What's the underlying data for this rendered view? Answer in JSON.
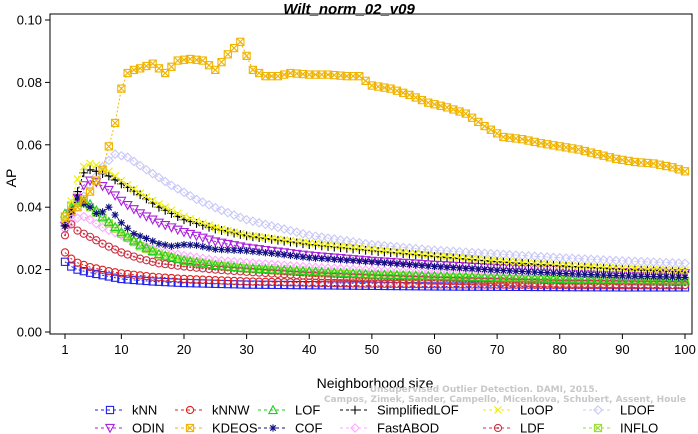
{
  "chart_data": {
    "type": "line",
    "title": "Wilt_norm_02_v09",
    "xlabel": "Neighborhood size",
    "ylabel": "AP",
    "xlim": [
      1,
      100
    ],
    "ylim": [
      0,
      0.1
    ],
    "x_ticks": [
      1,
      10,
      20,
      30,
      40,
      50,
      60,
      70,
      80,
      90,
      100
    ],
    "y_ticks": [
      0.0,
      0.02,
      0.04,
      0.06,
      0.08,
      0.1
    ],
    "y_tick_labels": [
      "0.00",
      "0.02",
      "0.04",
      "0.06",
      "0.08",
      "0.10"
    ],
    "grid": false,
    "legend_position": "bottom",
    "watermark": [
      "Unsupervised Outlier Detection. DAMI, 2015.",
      "Campos, Zimek, Sander, Campello, Micenkova, Schubert, Assent, Houle"
    ],
    "series": [
      {
        "name": "kNN",
        "color": "#2222ee",
        "marker": "square",
        "points": [
          [
            1,
            0.0225
          ],
          [
            2,
            0.021
          ],
          [
            3,
            0.02
          ],
          [
            5,
            0.019
          ],
          [
            8,
            0.0178
          ],
          [
            10,
            0.017
          ],
          [
            15,
            0.0162
          ],
          [
            20,
            0.0157
          ],
          [
            30,
            0.0152
          ],
          [
            40,
            0.015
          ],
          [
            50,
            0.0148
          ],
          [
            60,
            0.0146
          ],
          [
            70,
            0.0145
          ],
          [
            80,
            0.0144
          ],
          [
            90,
            0.0143
          ],
          [
            100,
            0.0143
          ]
        ]
      },
      {
        "name": "kNNW",
        "color": "#dd2222",
        "marker": "circle",
        "points": [
          [
            1,
            0.0255
          ],
          [
            2,
            0.0235
          ],
          [
            3,
            0.0222
          ],
          [
            5,
            0.0208
          ],
          [
            8,
            0.0195
          ],
          [
            10,
            0.0188
          ],
          [
            15,
            0.0177
          ],
          [
            20,
            0.017
          ],
          [
            30,
            0.0162
          ],
          [
            40,
            0.0158
          ],
          [
            50,
            0.0155
          ],
          [
            60,
            0.0153
          ],
          [
            70,
            0.0152
          ],
          [
            80,
            0.0151
          ],
          [
            90,
            0.015
          ],
          [
            100,
            0.015
          ]
        ]
      },
      {
        "name": "LOF",
        "color": "#22cc22",
        "marker": "triangle-up",
        "points": [
          [
            1,
            0.038
          ],
          [
            2,
            0.04
          ],
          [
            3,
            0.0415
          ],
          [
            4,
            0.042
          ],
          [
            5,
            0.041
          ],
          [
            7,
            0.037
          ],
          [
            10,
            0.032
          ],
          [
            13,
            0.028
          ],
          [
            16,
            0.025
          ],
          [
            20,
            0.023
          ],
          [
            25,
            0.0215
          ],
          [
            30,
            0.0205
          ],
          [
            40,
            0.0195
          ],
          [
            50,
            0.0185
          ],
          [
            60,
            0.018
          ],
          [
            70,
            0.0175
          ],
          [
            80,
            0.017
          ],
          [
            90,
            0.0168
          ],
          [
            100,
            0.0165
          ]
        ]
      },
      {
        "name": "SimplifiedLOF",
        "color": "#000000",
        "marker": "plus",
        "points": [
          [
            1,
            0.034
          ],
          [
            2,
            0.038
          ],
          [
            3,
            0.045
          ],
          [
            4,
            0.051
          ],
          [
            5,
            0.052
          ],
          [
            6,
            0.0515
          ],
          [
            8,
            0.05
          ],
          [
            10,
            0.0475
          ],
          [
            13,
            0.044
          ],
          [
            16,
            0.04
          ],
          [
            20,
            0.036
          ],
          [
            25,
            0.033
          ],
          [
            30,
            0.0308
          ],
          [
            40,
            0.028
          ],
          [
            50,
            0.026
          ],
          [
            60,
            0.0242
          ],
          [
            70,
            0.0225
          ],
          [
            80,
            0.0212
          ],
          [
            90,
            0.02
          ],
          [
            100,
            0.0192
          ]
        ]
      },
      {
        "name": "LoOP",
        "color": "#eeee00",
        "marker": "x",
        "points": [
          [
            1,
            0.036
          ],
          [
            2,
            0.042
          ],
          [
            3,
            0.049
          ],
          [
            4,
            0.053
          ],
          [
            5,
            0.054
          ],
          [
            6,
            0.0535
          ],
          [
            8,
            0.0515
          ],
          [
            10,
            0.0485
          ],
          [
            13,
            0.0445
          ],
          [
            16,
            0.041
          ],
          [
            20,
            0.037
          ],
          [
            25,
            0.0335
          ],
          [
            30,
            0.031
          ],
          [
            40,
            0.0285
          ],
          [
            50,
            0.0265
          ],
          [
            60,
            0.0245
          ],
          [
            70,
            0.0228
          ],
          [
            80,
            0.0215
          ],
          [
            90,
            0.0205
          ],
          [
            100,
            0.0198
          ]
        ]
      },
      {
        "name": "LDOF",
        "color": "#c8c8f8",
        "marker": "diamond",
        "points": [
          [
            1,
            0.035
          ],
          [
            3,
            0.04
          ],
          [
            5,
            0.047
          ],
          [
            7,
            0.053
          ],
          [
            9,
            0.057
          ],
          [
            11,
            0.056
          ],
          [
            14,
            0.052
          ],
          [
            18,
            0.047
          ],
          [
            22,
            0.0425
          ],
          [
            26,
            0.039
          ],
          [
            30,
            0.036
          ],
          [
            40,
            0.031
          ],
          [
            50,
            0.028
          ],
          [
            60,
            0.0262
          ],
          [
            70,
            0.025
          ],
          [
            80,
            0.0238
          ],
          [
            90,
            0.0228
          ],
          [
            100,
            0.022
          ]
        ]
      },
      {
        "name": "ODIN",
        "color": "#aa22dd",
        "marker": "triangle-down",
        "points": [
          [
            1,
            0.034
          ],
          [
            2,
            0.038
          ],
          [
            3,
            0.043
          ],
          [
            4,
            0.047
          ],
          [
            5,
            0.0485
          ],
          [
            6,
            0.048
          ],
          [
            8,
            0.0455
          ],
          [
            10,
            0.042
          ],
          [
            13,
            0.038
          ],
          [
            16,
            0.035
          ],
          [
            20,
            0.032
          ],
          [
            25,
            0.029
          ],
          [
            30,
            0.027
          ],
          [
            40,
            0.0245
          ],
          [
            50,
            0.0228
          ],
          [
            60,
            0.0215
          ],
          [
            70,
            0.0205
          ],
          [
            80,
            0.0198
          ],
          [
            90,
            0.0192
          ],
          [
            100,
            0.0188
          ]
        ]
      },
      {
        "name": "KDEOS",
        "color": "#f0b400",
        "marker": "square-x",
        "points": [
          [
            1,
            0.037
          ],
          [
            3,
            0.04
          ],
          [
            5,
            0.045
          ],
          [
            7,
            0.052
          ],
          [
            9,
            0.067
          ],
          [
            10,
            0.078
          ],
          [
            11,
            0.083
          ],
          [
            12,
            0.084
          ],
          [
            13,
            0.0845
          ],
          [
            15,
            0.086
          ],
          [
            17,
            0.083
          ],
          [
            19,
            0.087
          ],
          [
            21,
            0.0875
          ],
          [
            23,
            0.087
          ],
          [
            25,
            0.084
          ],
          [
            27,
            0.089
          ],
          [
            29,
            0.093
          ],
          [
            31,
            0.084
          ],
          [
            33,
            0.082
          ],
          [
            35,
            0.082
          ],
          [
            37,
            0.083
          ],
          [
            40,
            0.0825
          ],
          [
            43,
            0.0825
          ],
          [
            46,
            0.082
          ],
          [
            48,
            0.082
          ],
          [
            50,
            0.079
          ],
          [
            53,
            0.078
          ],
          [
            56,
            0.076
          ],
          [
            59,
            0.0735
          ],
          [
            62,
            0.072
          ],
          [
            65,
            0.07
          ],
          [
            68,
            0.066
          ],
          [
            71,
            0.0625
          ],
          [
            74,
            0.0618
          ],
          [
            77,
            0.0605
          ],
          [
            80,
            0.0595
          ],
          [
            83,
            0.0585
          ],
          [
            86,
            0.057
          ],
          [
            89,
            0.0555
          ],
          [
            92,
            0.0545
          ],
          [
            95,
            0.054
          ],
          [
            98,
            0.0528
          ],
          [
            100,
            0.0515
          ]
        ]
      },
      {
        "name": "LDF",
        "color": "#cc3344",
        "marker": "circle-dot",
        "points": [
          [
            1,
            0.031
          ],
          [
            2,
            0.0345
          ],
          [
            3,
            0.0325
          ],
          [
            5,
            0.0305
          ],
          [
            7,
            0.0283
          ],
          [
            10,
            0.0255
          ],
          [
            13,
            0.0235
          ],
          [
            16,
            0.022
          ],
          [
            20,
            0.021
          ],
          [
            25,
            0.02
          ],
          [
            30,
            0.0193
          ],
          [
            40,
            0.018
          ],
          [
            50,
            0.0172
          ],
          [
            60,
            0.0165
          ],
          [
            70,
            0.016
          ],
          [
            80,
            0.0155
          ],
          [
            90,
            0.0153
          ],
          [
            100,
            0.015
          ]
        ]
      },
      {
        "name": "COF",
        "color": "#101080",
        "marker": "star",
        "points": [
          [
            1,
            0.034
          ],
          [
            2,
            0.039
          ],
          [
            3,
            0.043
          ],
          [
            4,
            0.041
          ],
          [
            5,
            0.04
          ],
          [
            6,
            0.038
          ],
          [
            7,
            0.0385
          ],
          [
            8,
            0.04
          ],
          [
            9,
            0.0375
          ],
          [
            10,
            0.035
          ],
          [
            12,
            0.0315
          ],
          [
            14,
            0.03
          ],
          [
            16,
            0.0283
          ],
          [
            18,
            0.0275
          ],
          [
            20,
            0.028
          ],
          [
            22,
            0.0278
          ],
          [
            25,
            0.0265
          ],
          [
            30,
            0.026
          ],
          [
            35,
            0.025
          ],
          [
            40,
            0.0238
          ],
          [
            50,
            0.0225
          ],
          [
            60,
            0.021
          ],
          [
            70,
            0.0198
          ],
          [
            80,
            0.0188
          ],
          [
            90,
            0.018
          ],
          [
            100,
            0.0175
          ]
        ]
      },
      {
        "name": "FastABOD",
        "color": "#ffaaff",
        "marker": "diamond",
        "points": [
          [
            1,
            0.033
          ],
          [
            2,
            0.035
          ],
          [
            3,
            0.0365
          ],
          [
            4,
            0.037
          ],
          [
            5,
            0.036
          ],
          [
            7,
            0.0335
          ],
          [
            10,
            0.031
          ],
          [
            13,
            0.028
          ],
          [
            16,
            0.026
          ],
          [
            20,
            0.0245
          ],
          [
            25,
            0.023
          ],
          [
            30,
            0.0222
          ],
          [
            40,
            0.0208
          ],
          [
            50,
            0.0198
          ],
          [
            60,
            0.019
          ],
          [
            70,
            0.0183
          ],
          [
            80,
            0.0178
          ],
          [
            90,
            0.0173
          ],
          [
            100,
            0.017
          ]
        ]
      },
      {
        "name": "INFLO",
        "color": "#99dd33",
        "marker": "square-x",
        "points": [
          [
            1,
            0.037
          ],
          [
            2,
            0.0405
          ],
          [
            3,
            0.042
          ],
          [
            4,
            0.0415
          ],
          [
            5,
            0.04
          ],
          [
            7,
            0.0365
          ],
          [
            10,
            0.0315
          ],
          [
            13,
            0.0275
          ],
          [
            16,
            0.0248
          ],
          [
            20,
            0.0228
          ],
          [
            25,
            0.0213
          ],
          [
            30,
            0.0203
          ],
          [
            40,
            0.019
          ],
          [
            50,
            0.0182
          ],
          [
            60,
            0.0175
          ],
          [
            70,
            0.017
          ],
          [
            80,
            0.0166
          ],
          [
            90,
            0.0163
          ],
          [
            100,
            0.016
          ]
        ]
      }
    ]
  }
}
